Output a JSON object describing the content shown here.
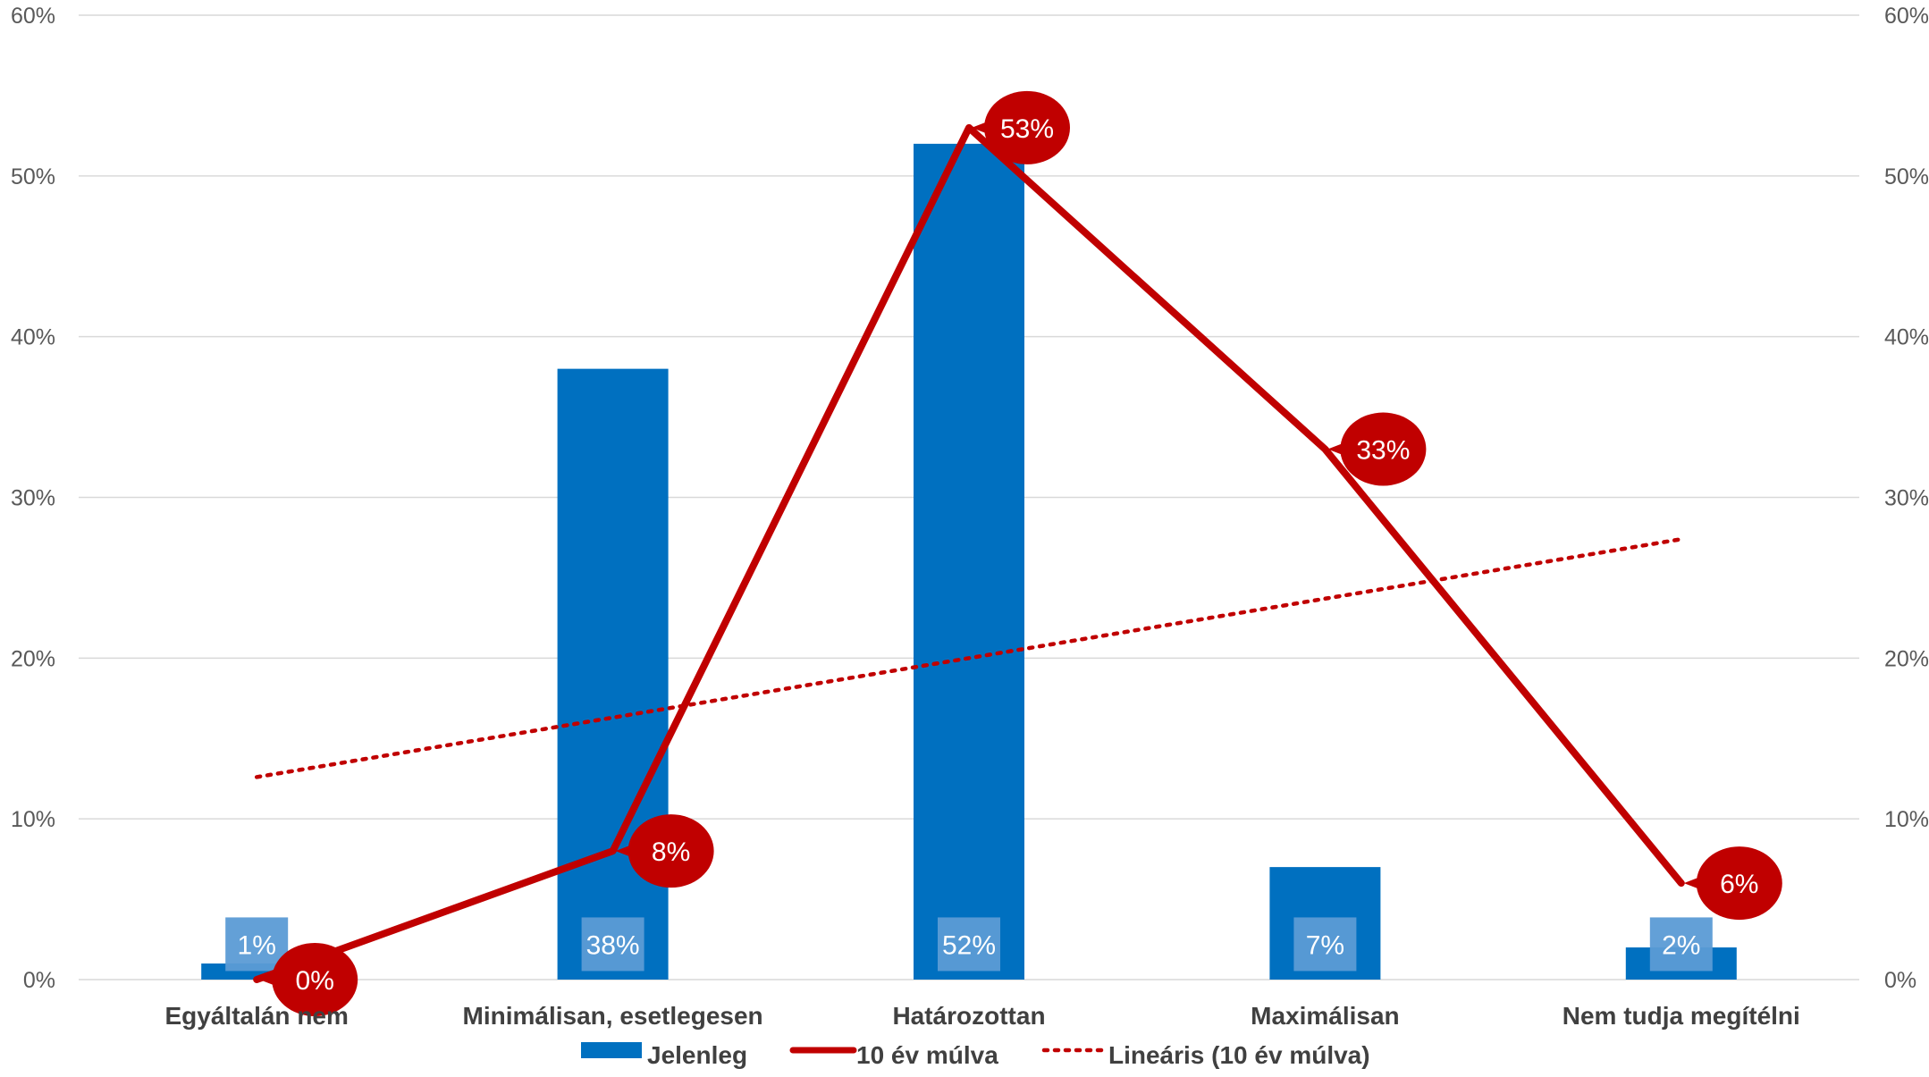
{
  "chart_data": {
    "type": "bar",
    "title": "",
    "categories": [
      "Egyáltalán nem",
      "Minimálisan, esetlegesen",
      "Határozottan",
      "Maximálisan",
      "Nem tudja megítélni"
    ],
    "series": [
      {
        "name": "Jelenleg",
        "type": "bar",
        "values": [
          1,
          38,
          52,
          7,
          2
        ],
        "labels": [
          "1%",
          "38%",
          "52%",
          "7%",
          "2%"
        ],
        "color": "#0070C0"
      },
      {
        "name": "10 év múlva",
        "type": "line",
        "values": [
          0,
          8,
          53,
          33,
          6
        ],
        "labels": [
          "0%",
          "8%",
          "53%",
          "33%",
          "6%"
        ],
        "color": "#C00000"
      },
      {
        "name": "Lineáris  (10 év múlva)",
        "type": "trendline",
        "values": [
          12.6,
          16.3,
          20.0,
          23.7,
          27.4
        ],
        "color": "#C00000"
      }
    ],
    "y_ticks": [
      "0%",
      "10%",
      "20%",
      "30%",
      "40%",
      "50%",
      "60%"
    ],
    "y2_ticks": [
      "0%",
      "10%",
      "20%",
      "30%",
      "40%",
      "50%",
      "60%"
    ],
    "ylim": [
      0,
      60
    ],
    "grid": true,
    "legend": "bottom"
  }
}
